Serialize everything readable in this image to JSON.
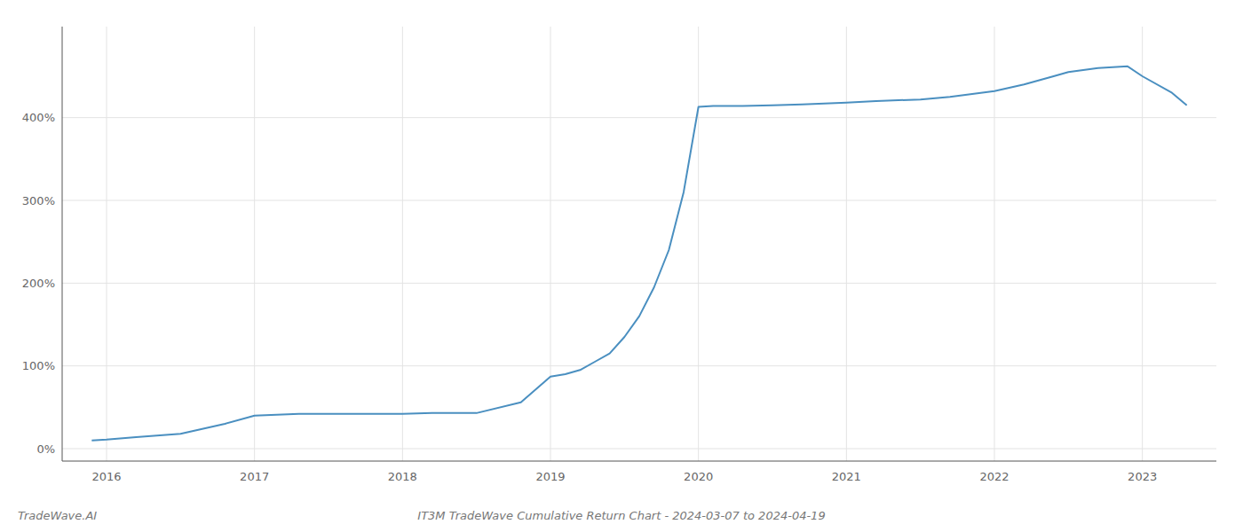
{
  "chart_data": {
    "type": "line",
    "title": "IT3M TradeWave Cumulative Return Chart - 2024-03-07 to 2024-04-19",
    "annotations": [
      "TradeWave.AI"
    ],
    "x": [
      2015.9,
      2016.0,
      2016.2,
      2016.5,
      2016.8,
      2017.0,
      2017.3,
      2017.6,
      2017.9,
      2018.0,
      2018.2,
      2018.5,
      2018.8,
      2019.0,
      2019.1,
      2019.2,
      2019.3,
      2019.4,
      2019.5,
      2019.6,
      2019.7,
      2019.8,
      2019.9,
      2020.0,
      2020.1,
      2020.2,
      2020.3,
      2020.5,
      2020.7,
      2021.0,
      2021.2,
      2021.5,
      2021.7,
      2022.0,
      2022.2,
      2022.4,
      2022.5,
      2022.7,
      2022.9,
      2023.0,
      2023.2,
      2023.3
    ],
    "values": [
      10,
      11,
      14,
      18,
      30,
      40,
      42,
      42,
      42,
      42,
      43,
      43,
      56,
      87,
      90,
      95,
      105,
      115,
      135,
      160,
      195,
      240,
      310,
      413,
      414,
      414,
      414,
      415,
      416,
      418,
      420,
      422,
      425,
      432,
      440,
      450,
      455,
      460,
      462,
      450,
      430,
      415
    ],
    "color": "#4a8fc0",
    "xlim": [
      2015.7,
      2023.5
    ],
    "ylim": [
      -15,
      510
    ],
    "xticks": [
      2016,
      2017,
      2018,
      2019,
      2020,
      2021,
      2022,
      2023
    ],
    "yticks": [
      {
        "value": 0,
        "label": "0%"
      },
      {
        "value": 100,
        "label": "100%"
      },
      {
        "value": 200,
        "label": "200%"
      },
      {
        "value": 300,
        "label": "300%"
      },
      {
        "value": 400,
        "label": "400%"
      }
    ],
    "grid": true
  }
}
